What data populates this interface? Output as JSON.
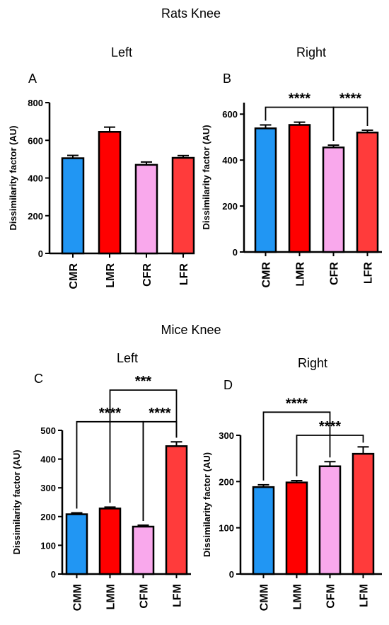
{
  "groups": {
    "rats": "Rats Knee",
    "mice": "Mice Knee"
  },
  "colors": {
    "blue": "#2196F3",
    "red": "#FF0000",
    "pink": "#F9A8EC",
    "light_red": "#FF3B3B",
    "axis": "#000000"
  },
  "chart_data": [
    {
      "id": "A",
      "letter": "A",
      "type": "bar",
      "subtitle": "Left",
      "ylabel": "Dissimilarity factor (AU)",
      "ylim": [
        0,
        800
      ],
      "yticks": [
        0,
        200,
        400,
        600,
        800
      ],
      "categories": [
        "CMR",
        "LMR",
        "CFR",
        "LFR"
      ],
      "values": [
        505,
        645,
        470,
        507
      ],
      "errors": [
        15,
        25,
        15,
        12
      ],
      "bar_colors": [
        "#2196F3",
        "#FF0000",
        "#F9A8EC",
        "#FF3B3B"
      ],
      "significance": []
    },
    {
      "id": "B",
      "letter": "B",
      "type": "bar",
      "subtitle": "Right",
      "ylabel": "Dissimilarity factor (AU)",
      "ylim": [
        0,
        650
      ],
      "yticks": [
        0,
        200,
        400,
        600
      ],
      "categories": [
        "CMR",
        "LMR",
        "CFR",
        "LFR"
      ],
      "values": [
        538,
        553,
        455,
        520
      ],
      "errors": [
        15,
        12,
        10,
        10
      ],
      "bar_colors": [
        "#2196F3",
        "#FF0000",
        "#F9A8EC",
        "#FF3B3B"
      ],
      "significance": [
        {
          "from": 0,
          "to": 2,
          "label": "****",
          "level": 630
        },
        {
          "from": 2,
          "to": 3,
          "label": "****",
          "level": 630
        }
      ]
    },
    {
      "id": "C",
      "letter": "C",
      "type": "bar",
      "subtitle": "Left",
      "ylabel": "Dissimilarity factor (AU)",
      "ylim": [
        0,
        500
      ],
      "yticks": [
        0,
        100,
        200,
        300,
        400,
        500
      ],
      "categories": [
        "CMM",
        "LMM",
        "CFM",
        "LFM"
      ],
      "values": [
        208,
        228,
        165,
        445
      ],
      "errors": [
        5,
        5,
        5,
        15
      ],
      "bar_colors": [
        "#2196F3",
        "#FF0000",
        "#F9A8EC",
        "#FF3B3B"
      ],
      "significance": [
        {
          "from": 1,
          "to": 3,
          "label": "***",
          "level": 640
        },
        {
          "from": 0,
          "to": 2,
          "label": "****",
          "level": 530
        },
        {
          "from": 2,
          "to": 3,
          "label": "****",
          "level": 530
        }
      ]
    },
    {
      "id": "D",
      "letter": "D",
      "type": "bar",
      "subtitle": "Right",
      "ylabel": "Dissimilarity factor (AU)",
      "ylim": [
        0,
        300
      ],
      "yticks": [
        0,
        100,
        200,
        300
      ],
      "categories": [
        "CMM",
        "LMM",
        "CFM",
        "LFM"
      ],
      "values": [
        188,
        198,
        233,
        260
      ],
      "errors": [
        5,
        4,
        10,
        15
      ],
      "bar_colors": [
        "#2196F3",
        "#FF0000",
        "#F9A8EC",
        "#FF3B3B"
      ],
      "significance": [
        {
          "from": 0,
          "to": 2,
          "label": "****",
          "level": 350
        },
        {
          "from": 1,
          "to": 3,
          "label": "****",
          "level": 300
        }
      ]
    }
  ]
}
